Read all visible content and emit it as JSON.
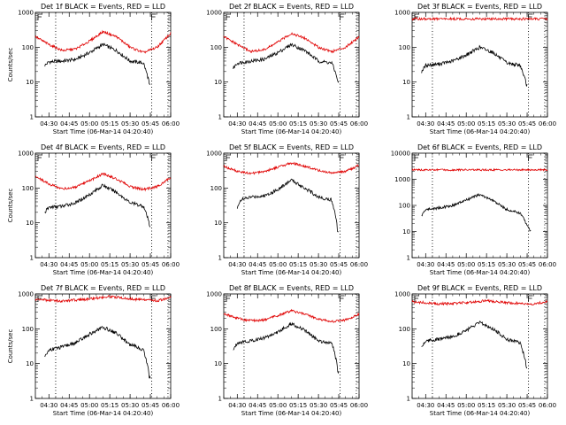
{
  "chart_data": [
    {
      "type": "line",
      "title": "Det 1f BLACK = Events, RED = LLD",
      "xlabel": "Start Time (06-Mar-14 04:20:40)",
      "ylabel": "Counts/sec",
      "yscale": "log",
      "ylim": [
        1,
        1000
      ],
      "xlim": [
        "04:20",
        "06:00"
      ],
      "x_ticks": [
        "04:30",
        "04:45",
        "05:00",
        "05:15",
        "05:30",
        "05:45",
        "06:00"
      ],
      "y_ticks": [
        "1",
        "10",
        "100",
        "1000"
      ],
      "vlines": [
        "04:35",
        "05:46",
        "05:58"
      ],
      "series": [
        {
          "name": "LLD",
          "color": "#e00000",
          "x": [
            "04:20",
            "04:30",
            "04:40",
            "04:50",
            "05:00",
            "05:10",
            "05:20",
            "05:30",
            "05:40",
            "05:50",
            "06:00"
          ],
          "values": [
            200,
            120,
            80,
            90,
            150,
            280,
            200,
            100,
            70,
            100,
            250
          ]
        },
        {
          "name": "Events",
          "color": "#000000",
          "x": [
            "04:27",
            "04:30",
            "04:40",
            "04:50",
            "05:00",
            "05:10",
            "05:20",
            "05:30",
            "05:40",
            "05:45"
          ],
          "values": [
            30,
            38,
            40,
            45,
            70,
            120,
            80,
            40,
            35,
            8
          ]
        }
      ]
    },
    {
      "type": "line",
      "title": "Det 2f BLACK = Events, RED = LLD",
      "xlabel": "Start Time (06-Mar-14 04:20:40)",
      "ylabel": "",
      "yscale": "log",
      "ylim": [
        1,
        1000
      ],
      "xlim": [
        "04:20",
        "06:00"
      ],
      "x_ticks": [
        "04:30",
        "04:45",
        "05:00",
        "05:15",
        "05:30",
        "05:45",
        "06:00"
      ],
      "y_ticks": [
        "1",
        "10",
        "100",
        "1000"
      ],
      "vlines": [
        "04:35",
        "05:46",
        "05:58"
      ],
      "series": [
        {
          "name": "LLD",
          "color": "#e00000",
          "x": [
            "04:20",
            "04:30",
            "04:40",
            "04:50",
            "05:00",
            "05:10",
            "05:20",
            "05:30",
            "05:40",
            "05:50",
            "06:00"
          ],
          "values": [
            200,
            120,
            75,
            85,
            140,
            250,
            180,
            100,
            75,
            100,
            200
          ]
        },
        {
          "name": "Events",
          "color": "#000000",
          "x": [
            "04:27",
            "04:30",
            "04:40",
            "04:50",
            "05:00",
            "05:10",
            "05:20",
            "05:30",
            "05:40",
            "05:45"
          ],
          "values": [
            25,
            35,
            40,
            45,
            70,
            120,
            80,
            40,
            35,
            10
          ]
        }
      ]
    },
    {
      "type": "line",
      "title": "Det 3f BLACK = Events, RED = LLD",
      "xlabel": "Start Time (06-Mar-14 04:20:40)",
      "ylabel": "",
      "yscale": "log",
      "ylim": [
        1,
        1000
      ],
      "xlim": [
        "04:20",
        "06:00"
      ],
      "x_ticks": [
        "04:30",
        "04:45",
        "05:00",
        "05:15",
        "05:30",
        "05:45",
        "06:00"
      ],
      "y_ticks": [
        "1",
        "10",
        "100",
        "1000"
      ],
      "vlines": [
        "04:35",
        "05:46",
        "05:58"
      ],
      "series": [
        {
          "name": "LLD",
          "color": "#e00000",
          "x": [
            "04:20",
            "06:00"
          ],
          "values": [
            650,
            650
          ]
        },
        {
          "name": "Events",
          "color": "#000000",
          "x": [
            "04:27",
            "04:30",
            "04:40",
            "04:50",
            "05:00",
            "05:10",
            "05:20",
            "05:30",
            "05:40",
            "05:45"
          ],
          "values": [
            20,
            30,
            33,
            40,
            60,
            100,
            70,
            35,
            30,
            8
          ]
        }
      ]
    },
    {
      "type": "line",
      "title": "Det 4f BLACK = Events, RED = LLD",
      "xlabel": "Start Time (06-Mar-14 04:20:40)",
      "ylabel": "Counts/sec",
      "yscale": "log",
      "ylim": [
        1,
        1000
      ],
      "xlim": [
        "04:20",
        "06:00"
      ],
      "x_ticks": [
        "04:30",
        "04:45",
        "05:00",
        "05:15",
        "05:30",
        "05:45",
        "06:00"
      ],
      "y_ticks": [
        "1",
        "10",
        "100",
        "1000"
      ],
      "vlines": [
        "04:35",
        "05:46",
        "05:58"
      ],
      "series": [
        {
          "name": "LLD",
          "color": "#e00000",
          "x": [
            "04:20",
            "04:30",
            "04:40",
            "04:50",
            "05:00",
            "05:10",
            "05:20",
            "05:30",
            "05:40",
            "05:50",
            "06:00"
          ],
          "values": [
            220,
            130,
            95,
            105,
            160,
            260,
            180,
            110,
            90,
            110,
            200
          ]
        },
        {
          "name": "Events",
          "color": "#000000",
          "x": [
            "04:27",
            "04:30",
            "04:40",
            "04:50",
            "05:00",
            "05:10",
            "05:20",
            "05:30",
            "05:40",
            "05:45"
          ],
          "values": [
            20,
            28,
            30,
            38,
            65,
            120,
            75,
            38,
            30,
            8
          ]
        }
      ]
    },
    {
      "type": "line",
      "title": "Det 5f BLACK = Events, RED = LLD",
      "xlabel": "Start Time (06-Mar-14 04:20:40)",
      "ylabel": "",
      "yscale": "log",
      "ylim": [
        1,
        1000
      ],
      "xlim": [
        "04:20",
        "06:00"
      ],
      "x_ticks": [
        "04:30",
        "04:45",
        "05:00",
        "05:15",
        "05:30",
        "05:45",
        "06:00"
      ],
      "y_ticks": [
        "1",
        "10",
        "100",
        "1000"
      ],
      "vlines": [
        "04:35",
        "05:46",
        "05:58"
      ],
      "series": [
        {
          "name": "LLD",
          "color": "#e00000",
          "x": [
            "04:20",
            "04:30",
            "04:40",
            "04:50",
            "05:00",
            "05:10",
            "05:20",
            "05:30",
            "05:40",
            "05:50",
            "06:00"
          ],
          "values": [
            420,
            300,
            260,
            300,
            400,
            520,
            420,
            320,
            270,
            300,
            450
          ]
        },
        {
          "name": "Events",
          "color": "#000000",
          "x": [
            "04:30",
            "04:32",
            "04:40",
            "04:50",
            "05:00",
            "05:10",
            "05:20",
            "05:30",
            "05:40",
            "05:45"
          ],
          "values": [
            25,
            45,
            55,
            60,
            90,
            170,
            100,
            55,
            45,
            6
          ]
        }
      ]
    },
    {
      "type": "line",
      "title": "Det 6f BLACK = Events, RED = LLD",
      "xlabel": "Start Time (06-Mar-14 04:20:40)",
      "ylabel": "",
      "yscale": "log",
      "ylim": [
        1,
        10000
      ],
      "xlim": [
        "04:20",
        "06:00"
      ],
      "x_ticks": [
        "04:30",
        "04:45",
        "05:00",
        "05:15",
        "05:30",
        "05:45",
        "06:00"
      ],
      "y_ticks": [
        "1",
        "10",
        "100",
        "1000",
        "10000"
      ],
      "vlines": [
        "04:35",
        "05:46",
        "05:58"
      ],
      "series": [
        {
          "name": "LLD",
          "color": "#e00000",
          "x": [
            "04:20",
            "06:00"
          ],
          "values": [
            2300,
            2300
          ]
        },
        {
          "name": "Events",
          "color": "#000000",
          "x": [
            "04:27",
            "04:30",
            "04:40",
            "04:50",
            "05:00",
            "05:10",
            "05:20",
            "05:30",
            "05:40",
            "05:48"
          ],
          "values": [
            40,
            70,
            80,
            100,
            160,
            260,
            150,
            70,
            50,
            10
          ]
        }
      ]
    },
    {
      "type": "line",
      "title": "Det 7f BLACK = Events, RED = LLD",
      "xlabel": "Start Time (06-Mar-14 04:20:40)",
      "ylabel": "Counts/sec",
      "yscale": "log",
      "ylim": [
        1,
        1000
      ],
      "xlim": [
        "04:20",
        "06:00"
      ],
      "x_ticks": [
        "04:30",
        "04:45",
        "05:00",
        "05:15",
        "05:30",
        "05:45",
        "06:00"
      ],
      "y_ticks": [
        "1",
        "10",
        "100",
        "1000"
      ],
      "vlines": [
        "04:35",
        "05:46",
        "05:58"
      ],
      "series": [
        {
          "name": "LLD",
          "color": "#e00000",
          "x": [
            "04:20",
            "04:40",
            "05:00",
            "05:15",
            "05:30",
            "05:50",
            "06:00"
          ],
          "values": [
            700,
            620,
            720,
            850,
            720,
            640,
            800
          ]
        },
        {
          "name": "Events",
          "color": "#000000",
          "x": [
            "04:27",
            "04:30",
            "04:40",
            "04:50",
            "05:00",
            "05:10",
            "05:20",
            "05:30",
            "05:40",
            "05:45"
          ],
          "values": [
            15,
            25,
            30,
            40,
            70,
            110,
            75,
            35,
            25,
            4
          ]
        }
      ]
    },
    {
      "type": "line",
      "title": "Det 8f BLACK = Events, RED = LLD",
      "xlabel": "Start Time (06-Mar-14 04:20:40)",
      "ylabel": "",
      "yscale": "log",
      "ylim": [
        1,
        1000
      ],
      "xlim": [
        "04:20",
        "06:00"
      ],
      "x_ticks": [
        "04:30",
        "04:45",
        "05:00",
        "05:15",
        "05:30",
        "05:45",
        "06:00"
      ],
      "y_ticks": [
        "1",
        "10",
        "100",
        "1000"
      ],
      "vlines": [
        "04:35",
        "05:46",
        "05:58"
      ],
      "series": [
        {
          "name": "LLD",
          "color": "#e00000",
          "x": [
            "04:20",
            "04:30",
            "04:40",
            "04:50",
            "05:00",
            "05:10",
            "05:20",
            "05:30",
            "05:40",
            "05:50",
            "06:00"
          ],
          "values": [
            280,
            200,
            170,
            180,
            240,
            330,
            260,
            190,
            160,
            180,
            260
          ]
        },
        {
          "name": "Events",
          "color": "#000000",
          "x": [
            "04:27",
            "04:30",
            "04:40",
            "04:50",
            "05:00",
            "05:10",
            "05:20",
            "05:30",
            "05:40",
            "05:45"
          ],
          "values": [
            25,
            40,
            45,
            55,
            80,
            140,
            90,
            45,
            40,
            6
          ]
        }
      ]
    },
    {
      "type": "line",
      "title": "Det 9f BLACK = Events, RED = LLD",
      "xlabel": "Start Time (06-Mar-14 04:20:40)",
      "ylabel": "",
      "yscale": "log",
      "ylim": [
        1,
        1000
      ],
      "xlim": [
        "04:20",
        "06:00"
      ],
      "x_ticks": [
        "04:30",
        "04:45",
        "05:00",
        "05:15",
        "05:30",
        "05:45",
        "06:00"
      ],
      "y_ticks": [
        "1",
        "10",
        "100",
        "1000"
      ],
      "vlines": [
        "04:35",
        "05:46",
        "05:58"
      ],
      "series": [
        {
          "name": "LLD",
          "color": "#e00000",
          "x": [
            "04:20",
            "04:40",
            "05:00",
            "05:15",
            "05:30",
            "05:50",
            "06:00"
          ],
          "values": [
            600,
            520,
            560,
            640,
            560,
            520,
            600
          ]
        },
        {
          "name": "Events",
          "color": "#000000",
          "x": [
            "04:27",
            "04:30",
            "04:40",
            "04:50",
            "05:00",
            "05:10",
            "05:20",
            "05:30",
            "05:40",
            "05:45"
          ],
          "values": [
            30,
            45,
            50,
            60,
            90,
            150,
            100,
            50,
            40,
            8
          ]
        }
      ]
    }
  ]
}
